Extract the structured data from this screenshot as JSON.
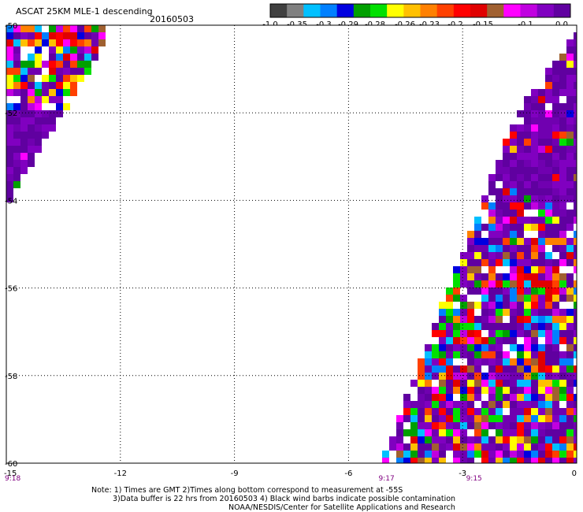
{
  "header": {
    "title": "ASCAT 25KM MLE-1 descending",
    "date": "20160503"
  },
  "color_scale": {
    "colors": [
      "#404040",
      "#808080",
      "#00c0ff",
      "#0080ff",
      "#0000e0",
      "#00a000",
      "#00e000",
      "#ffff00",
      "#ffc000",
      "#ff8000",
      "#ff4000",
      "#ff0000",
      "#e00000",
      "#a06030",
      "#ff00ff",
      "#c000e0",
      "#8000c0",
      "#6000a0"
    ],
    "labels": [
      "-1.0",
      "-0.35",
      "-0.3",
      "-0.29",
      "-0.28",
      "-0.26",
      "-0.23",
      "-0.2",
      "-0.15",
      "-0.1",
      "0.0"
    ]
  },
  "axes": {
    "x_ticks": [
      "-15",
      "-12",
      "-9",
      "-6",
      "-3",
      "0"
    ],
    "y_ticks": [
      "-50",
      "-52",
      "-54",
      "-56",
      "-58",
      "-60"
    ],
    "x_values": [
      -15,
      -12,
      -9,
      -6,
      -3,
      0
    ],
    "y_values": [
      -50,
      -52,
      -54,
      -56,
      -58,
      -60
    ],
    "time_labels": [
      "9:18",
      "9:17",
      "9:15"
    ],
    "time_lon": [
      -15,
      -5,
      -2.7
    ]
  },
  "map": {
    "lon_range": [
      -15,
      0
    ],
    "lat_range": [
      -60,
      -50
    ]
  },
  "notes": {
    "line1": "Note: 1) Times are GMT 2)Times along bottom correspond to measurement at -55S",
    "line2": "3)Data buffer is 22 hrs from 20160503 4) Black wind barbs indicate possible contamination",
    "line3": "NOAA/NESDIS/Center for Satellite Applications and Research"
  }
}
